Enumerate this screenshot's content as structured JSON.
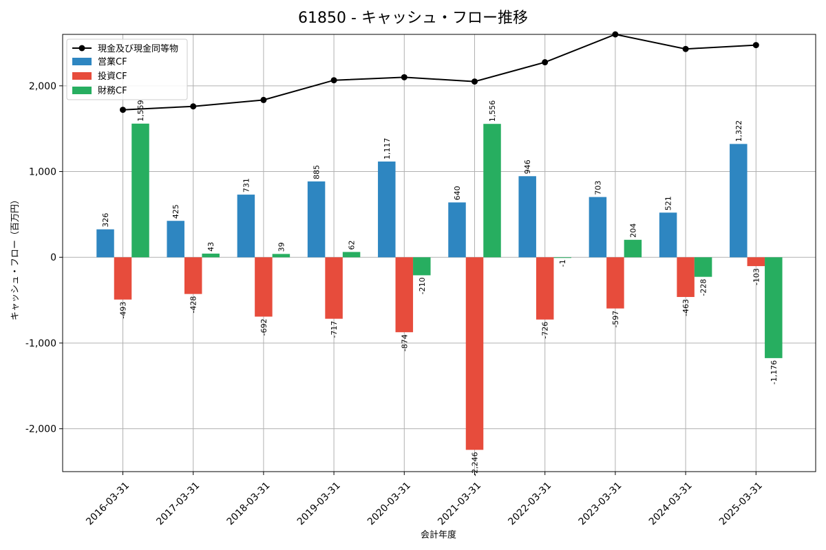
{
  "chart_data": {
    "type": "bar",
    "title": "61850 - キャッシュ・フロー推移",
    "xlabel": "会計年度",
    "ylabel": "キャッシュ・フロー（百万円）",
    "ylim": [
      -2500,
      2600
    ],
    "yticks": [
      -2000,
      -1000,
      0,
      1000,
      2000
    ],
    "ytick_labels": [
      "-2,000",
      "-1,000",
      "0",
      "1,000",
      "2,000"
    ],
    "grid": true,
    "legend_position": "top-left",
    "categories": [
      "2016-03-31",
      "2017-03-31",
      "2018-03-31",
      "2019-03-31",
      "2020-03-31",
      "2021-03-31",
      "2022-03-31",
      "2023-03-31",
      "2024-03-31",
      "2025-03-31"
    ],
    "line_series": {
      "name": "現金及び現金同等物",
      "color": "#000000",
      "values": [
        1720,
        1760,
        1835,
        2065,
        2100,
        2050,
        2275,
        2600,
        2430,
        2475
      ]
    },
    "series": [
      {
        "name": "営業CF",
        "color": "#2e86c1",
        "values": [
          326,
          425,
          731,
          885,
          1117,
          640,
          946,
          703,
          521,
          1322
        ],
        "labels": [
          "326",
          "425",
          "731",
          "885",
          "1,117",
          "640",
          "946",
          "703",
          "521",
          "1,322"
        ]
      },
      {
        "name": "投資CF",
        "color": "#e74c3c",
        "values": [
          -493,
          -428,
          -692,
          -717,
          -874,
          -2246,
          -726,
          -597,
          -463,
          -103
        ],
        "labels": [
          "-493",
          "-428",
          "-692",
          "-717",
          "-874",
          "-2,246",
          "-726",
          "-597",
          "-463",
          "-103"
        ]
      },
      {
        "name": "財務CF",
        "color": "#27ae60",
        "values": [
          1559,
          43,
          39,
          62,
          -210,
          1556,
          -1,
          204,
          -228,
          -1176
        ],
        "labels": [
          "1,559",
          "43",
          "39",
          "62",
          "-210",
          "1,556",
          "-1",
          "204",
          "-228",
          "-1,176"
        ]
      }
    ]
  }
}
